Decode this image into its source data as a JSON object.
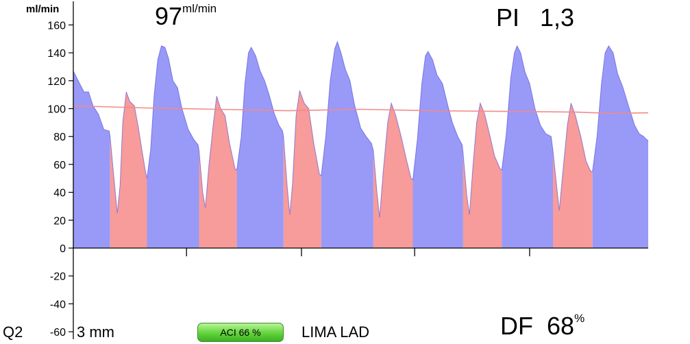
{
  "header": {
    "unit": "ml/min",
    "flow_value": "97",
    "flow_unit": "ml/min",
    "pi_label": "PI",
    "pi_value": "1,3"
  },
  "footer": {
    "probe": "Q2",
    "size": "3 mm",
    "aci_badge": "ACI 66 %",
    "vessel": "LIMA LAD",
    "df_label": "DF",
    "df_value": "68",
    "df_unit": "%"
  },
  "colors": {
    "systole_fill": "#9999f7",
    "systole_stroke": "#3a3ad8",
    "diastole_fill": "#f79b9b",
    "mean_line": "#f28a8a",
    "axis": "#000000"
  },
  "chart_data": {
    "type": "area",
    "ylabel": "ml/min",
    "ylim": [
      -60,
      170
    ],
    "yticks": [
      160,
      140,
      120,
      100,
      80,
      60,
      40,
      20,
      0,
      -20,
      -40,
      -60
    ],
    "grid": false,
    "series": [
      {
        "name": "",
        "phase_colors": [
          "systole",
          "diastole"
        ],
        "values": [
          [
            0.0,
            127,
            "s"
          ],
          [
            0.35,
            118,
            "s"
          ],
          [
            0.6,
            112,
            "s"
          ],
          [
            0.85,
            112,
            "s"
          ],
          [
            1.1,
            102,
            "s"
          ],
          [
            1.4,
            96,
            "s"
          ],
          [
            1.7,
            85,
            "s"
          ],
          [
            2.0,
            84,
            "s"
          ],
          [
            2.05,
            80,
            "d"
          ],
          [
            2.25,
            52,
            "d"
          ],
          [
            2.45,
            25,
            "d"
          ],
          [
            2.6,
            45,
            "d"
          ],
          [
            2.75,
            90,
            "d"
          ],
          [
            2.95,
            112,
            "d"
          ],
          [
            3.15,
            105,
            "d"
          ],
          [
            3.4,
            102,
            "d"
          ],
          [
            3.6,
            88,
            "d"
          ],
          [
            3.85,
            68,
            "d"
          ],
          [
            4.0,
            56,
            "d"
          ],
          [
            4.1,
            50,
            "s"
          ],
          [
            4.3,
            70,
            "s"
          ],
          [
            4.5,
            110,
            "s"
          ],
          [
            4.7,
            135,
            "s"
          ],
          [
            4.9,
            145,
            "s"
          ],
          [
            5.1,
            144,
            "s"
          ],
          [
            5.3,
            136,
            "s"
          ],
          [
            5.55,
            120,
            "s"
          ],
          [
            5.8,
            115,
            "s"
          ],
          [
            6.05,
            100,
            "s"
          ],
          [
            6.4,
            85,
            "s"
          ],
          [
            6.7,
            78,
            "s"
          ],
          [
            6.95,
            74,
            "s"
          ],
          [
            7.0,
            70,
            "d"
          ],
          [
            7.2,
            40,
            "d"
          ],
          [
            7.35,
            29,
            "d"
          ],
          [
            7.55,
            60,
            "d"
          ],
          [
            7.8,
            90,
            "d"
          ],
          [
            7.98,
            109,
            "d"
          ],
          [
            8.2,
            100,
            "d"
          ],
          [
            8.45,
            95,
            "d"
          ],
          [
            8.7,
            75,
            "d"
          ],
          [
            9.0,
            57,
            "d"
          ],
          [
            9.1,
            56,
            "s"
          ],
          [
            9.35,
            80,
            "s"
          ],
          [
            9.55,
            118,
            "s"
          ],
          [
            9.75,
            140,
            "s"
          ],
          [
            9.9,
            144,
            "s"
          ],
          [
            10.15,
            138,
            "s"
          ],
          [
            10.4,
            127,
            "s"
          ],
          [
            10.65,
            120,
            "s"
          ],
          [
            10.9,
            110,
            "s"
          ],
          [
            11.2,
            96,
            "s"
          ],
          [
            11.45,
            88,
            "s"
          ],
          [
            11.65,
            84,
            "s"
          ],
          [
            11.7,
            80,
            "d"
          ],
          [
            11.9,
            45,
            "d"
          ],
          [
            12.05,
            24,
            "d"
          ],
          [
            12.2,
            46,
            "d"
          ],
          [
            12.4,
            95,
            "d"
          ],
          [
            12.6,
            113,
            "d"
          ],
          [
            12.85,
            104,
            "d"
          ],
          [
            13.1,
            100,
            "d"
          ],
          [
            13.4,
            74,
            "d"
          ],
          [
            13.7,
            53,
            "d"
          ],
          [
            13.8,
            52,
            "s"
          ],
          [
            14.05,
            80,
            "s"
          ],
          [
            14.3,
            120,
            "s"
          ],
          [
            14.55,
            143,
            "s"
          ],
          [
            14.7,
            148,
            "s"
          ],
          [
            14.9,
            140,
            "s"
          ],
          [
            15.15,
            128,
            "s"
          ],
          [
            15.4,
            120,
            "s"
          ],
          [
            15.65,
            103,
            "s"
          ],
          [
            16.0,
            86,
            "s"
          ],
          [
            16.3,
            80,
            "s"
          ],
          [
            16.6,
            75,
            "s"
          ],
          [
            16.7,
            70,
            "d"
          ],
          [
            16.9,
            40,
            "d"
          ],
          [
            17.05,
            22,
            "d"
          ],
          [
            17.25,
            55,
            "d"
          ],
          [
            17.5,
            90,
            "d"
          ],
          [
            17.7,
            104,
            "d"
          ],
          [
            17.95,
            95,
            "d"
          ],
          [
            18.25,
            80,
            "d"
          ],
          [
            18.55,
            63,
            "d"
          ],
          [
            18.8,
            50,
            "d"
          ],
          [
            18.9,
            49,
            "s"
          ],
          [
            19.15,
            78,
            "s"
          ],
          [
            19.4,
            118,
            "s"
          ],
          [
            19.6,
            138,
            "s"
          ],
          [
            19.75,
            141,
            "s"
          ],
          [
            20.0,
            135,
            "s"
          ],
          [
            20.25,
            124,
            "s"
          ],
          [
            20.55,
            118,
            "s"
          ],
          [
            20.85,
            102,
            "s"
          ],
          [
            21.1,
            90,
            "s"
          ],
          [
            21.4,
            80,
            "s"
          ],
          [
            21.65,
            74,
            "s"
          ],
          [
            21.7,
            68,
            "d"
          ],
          [
            21.9,
            38,
            "d"
          ],
          [
            22.05,
            24,
            "d"
          ],
          [
            22.25,
            60,
            "d"
          ],
          [
            22.45,
            90,
            "d"
          ],
          [
            22.65,
            104,
            "d"
          ],
          [
            22.9,
            96,
            "d"
          ],
          [
            23.2,
            80,
            "d"
          ],
          [
            23.45,
            66,
            "d"
          ],
          [
            23.75,
            57,
            "d"
          ],
          [
            23.85,
            56,
            "s"
          ],
          [
            24.1,
            82,
            "s"
          ],
          [
            24.35,
            122,
            "s"
          ],
          [
            24.55,
            140,
            "s"
          ],
          [
            24.7,
            145,
            "s"
          ],
          [
            24.9,
            140,
            "s"
          ],
          [
            25.15,
            126,
            "s"
          ],
          [
            25.4,
            118,
            "s"
          ],
          [
            25.7,
            100,
            "s"
          ],
          [
            26.0,
            88,
            "s"
          ],
          [
            26.3,
            82,
            "s"
          ],
          [
            26.6,
            80,
            "s"
          ],
          [
            26.7,
            70,
            "d"
          ],
          [
            26.9,
            45,
            "d"
          ],
          [
            27.05,
            27,
            "d"
          ],
          [
            27.25,
            55,
            "d"
          ],
          [
            27.5,
            88,
            "d"
          ],
          [
            27.7,
            104,
            "d"
          ],
          [
            27.95,
            95,
            "d"
          ],
          [
            28.25,
            80,
            "d"
          ],
          [
            28.55,
            62,
            "d"
          ],
          [
            28.8,
            55,
            "d"
          ],
          [
            28.9,
            55,
            "s"
          ],
          [
            29.15,
            80,
            "s"
          ],
          [
            29.4,
            118,
            "s"
          ],
          [
            29.6,
            140,
            "s"
          ],
          [
            29.8,
            145,
            "s"
          ],
          [
            30.05,
            140,
            "s"
          ],
          [
            30.3,
            125,
            "s"
          ],
          [
            30.6,
            115,
            "s"
          ],
          [
            30.95,
            100,
            "s"
          ],
          [
            31.25,
            88,
            "s"
          ],
          [
            31.5,
            82,
            "s"
          ],
          [
            31.75,
            80,
            "s"
          ],
          [
            31.9,
            78,
            "s"
          ],
          [
            32.0,
            77,
            "s"
          ]
        ]
      },
      {
        "name": "",
        "type": "line",
        "x": [
          0,
          4,
          8,
          12,
          16,
          20,
          24,
          28,
          30,
          32
        ],
        "values": [
          102,
          100.5,
          99.5,
          98.5,
          99.5,
          98.5,
          98,
          97.5,
          96.5,
          97
        ]
      }
    ],
    "xticks_minor": [
      6.3,
      12.7,
      19.0,
      25.4
    ],
    "xlim": [
      0,
      32
    ]
  }
}
